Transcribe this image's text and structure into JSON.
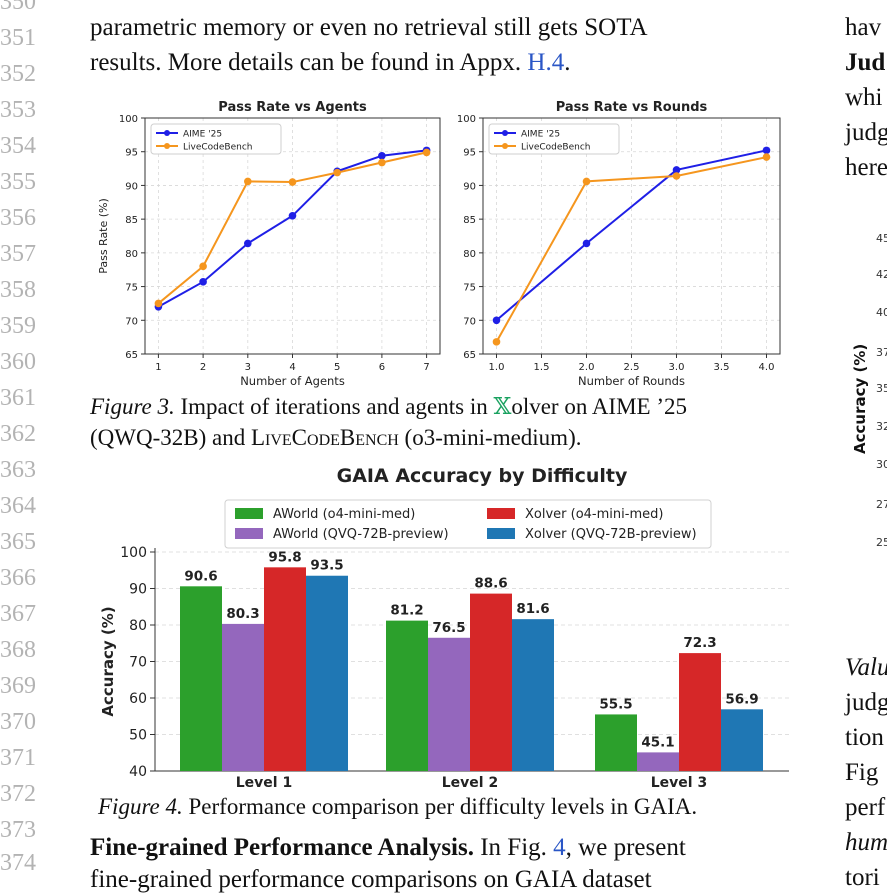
{
  "line_numbers": [
    "350",
    "351",
    "352",
    "353",
    "354",
    "355",
    "356",
    "357",
    "358",
    "359",
    "360",
    "361",
    "362",
    "363",
    "364",
    "365",
    "366",
    "367",
    "368",
    "369",
    "370",
    "371",
    "372",
    "373",
    "374"
  ],
  "intro": {
    "line1": "parametric memory or even no retrieval still gets SOTA",
    "line2_pre": "results. More details can be found in Appx. ",
    "line2_link": "H.4",
    "line2_post": "."
  },
  "figure3": {
    "caption_label": "Figure 3.",
    "caption_part1": " Impact of iterations and agents in ",
    "caption_symbol": "𝕏",
    "caption_part2": "olver on AIME ’25",
    "caption_line2a": "(QWQ-32B) and ",
    "caption_line2_sc": "LiveCodeBench",
    "caption_line2b": " (o3-mini-medium)."
  },
  "figure4": {
    "caption_label": "Figure 4.",
    "caption_text": " Performance comparison per difficulty levels in GAIA."
  },
  "para": {
    "heading": "Fine-grained Performance Analysis.",
    "text_pre": " In Fig. ",
    "text_link": "4",
    "text_post": ", we present",
    "line2": "fine-grained performance comparisons on GAIA dataset"
  },
  "right_column": {
    "lines": [
      "hav",
      "Jud",
      "whi",
      "judg",
      "here"
    ],
    "lines_lower": [
      "Valu",
      "judg",
      "tion",
      "Fig",
      "perf",
      "hum",
      "tori"
    ],
    "ticks": [
      "45",
      "42",
      "40",
      "37",
      "35",
      "32",
      "30",
      "27",
      "25"
    ],
    "ylabel": "Accuracy (%)"
  },
  "chart_data": [
    {
      "type": "line",
      "title": "Pass Rate vs Agents",
      "xlabel": "Number of Agents",
      "ylabel": "Pass Rate (%)",
      "x": [
        1,
        2,
        3,
        4,
        5,
        6,
        7
      ],
      "xlim": [
        1,
        7
      ],
      "ylim": [
        65,
        100
      ],
      "xticks": [
        "1",
        "2",
        "3",
        "4",
        "5",
        "6",
        "7"
      ],
      "yticks": [
        "65",
        "70",
        "75",
        "80",
        "85",
        "90",
        "95",
        "100"
      ],
      "grid": true,
      "legend": "top-left",
      "series": [
        {
          "name": "AIME '25",
          "color": "#1f1fe6",
          "values": [
            72.0,
            75.7,
            81.4,
            85.5,
            92.1,
            94.4,
            95.2
          ]
        },
        {
          "name": "LiveCodeBench",
          "color": "#f5961e",
          "values": [
            72.5,
            78.0,
            90.6,
            90.5,
            91.9,
            93.4,
            94.9
          ]
        }
      ]
    },
    {
      "type": "line",
      "title": "Pass Rate vs Rounds",
      "xlabel": "Number of Rounds",
      "ylabel": "",
      "x": [
        1.0,
        2.0,
        3.0,
        4.0
      ],
      "xlim": [
        1.0,
        4.0
      ],
      "ylim": [
        65,
        100
      ],
      "xticks": [
        "1.0",
        "1.5",
        "2.0",
        "2.5",
        "3.0",
        "3.5",
        "4.0"
      ],
      "yticks": [
        "65",
        "70",
        "75",
        "80",
        "85",
        "90",
        "95",
        "100"
      ],
      "grid": true,
      "legend": "top-left",
      "series": [
        {
          "name": "AIME '25",
          "color": "#1f1fe6",
          "values": [
            70.0,
            81.4,
            92.3,
            95.2
          ]
        },
        {
          "name": "LiveCodeBench",
          "color": "#f5961e",
          "values": [
            66.8,
            90.6,
            91.4,
            94.2
          ]
        }
      ]
    },
    {
      "type": "bar",
      "title": "GAIA Accuracy by Difficulty",
      "ylabel": "Accuracy (%)",
      "categories": [
        "Level 1",
        "Level 2",
        "Level 3"
      ],
      "ylim": [
        40,
        100
      ],
      "yticks": [
        "40",
        "50",
        "60",
        "70",
        "80",
        "90",
        "100"
      ],
      "grid": true,
      "legend": "top",
      "series": [
        {
          "name": "AWorld (o4-mini-med)",
          "color": "#2ca02c",
          "values": [
            90.6,
            81.2,
            55.5
          ]
        },
        {
          "name": "AWorld (QVQ-72B-preview)",
          "color": "#9467bd",
          "values": [
            80.3,
            76.5,
            45.1
          ]
        },
        {
          "name": "Xolver (o4-mini-med)",
          "color": "#d62728",
          "values": [
            95.8,
            88.6,
            72.3
          ]
        },
        {
          "name": "Xolver (QVQ-72B-preview)",
          "color": "#1f77b4",
          "values": [
            93.5,
            81.6,
            56.9
          ]
        }
      ]
    }
  ]
}
